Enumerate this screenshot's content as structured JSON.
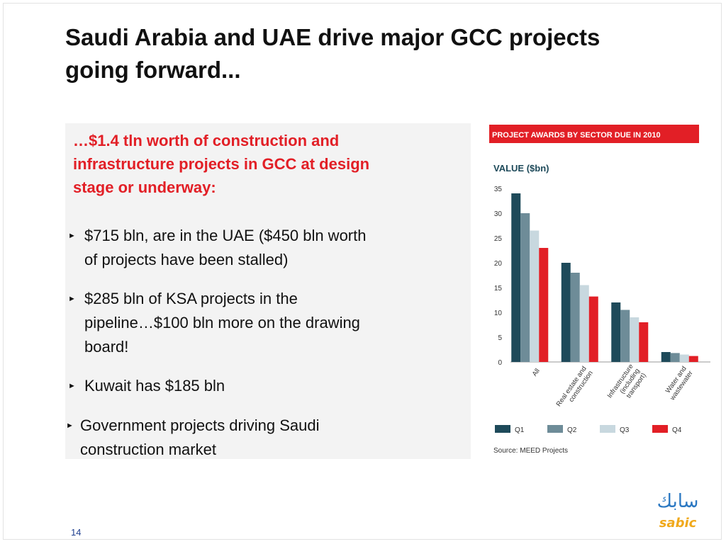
{
  "slide": {
    "title_lines": [
      "Saudi Arabia and UAE drive major GCC projects",
      "going forward..."
    ],
    "page_number": "14"
  },
  "panel": {
    "heading_lines": [
      "…$1.4 tln worth of construction and",
      "infrastructure projects in GCC at design",
      "stage or underway:"
    ],
    "bullets": [
      {
        "lines": [
          "$715 bln, are in the UAE ($450 bln worth",
          "of projects have been stalled)"
        ]
      },
      {
        "lines": [
          "$285 bln of KSA projects in the",
          "pipeline…$100 bln more on the drawing",
          "board!"
        ]
      },
      {
        "lines": [
          "Kuwait  has $185 bln"
        ]
      },
      {
        "lines": [
          "Government projects driving Saudi",
          "construction market"
        ]
      }
    ],
    "bullet_marker": "►"
  },
  "logo": {
    "arabic": "سابك",
    "latin": "sabic"
  },
  "chart_data": {
    "type": "bar",
    "title": "PROJECT AWARDS BY SECTOR DUE IN 2010",
    "ylabel": "VALUE ($bn)",
    "ylim": [
      0,
      35
    ],
    "yticks": [
      0,
      5,
      10,
      15,
      20,
      25,
      30,
      35
    ],
    "categories": [
      [
        "All"
      ],
      [
        "Real estate and",
        "construction"
      ],
      [
        "Infrastructure",
        "(including",
        "transport)"
      ],
      [
        "Water and",
        "wastewater"
      ]
    ],
    "series": [
      {
        "name": "Q1",
        "color": "#1e4a5a",
        "values": [
          34,
          20,
          12,
          2
        ]
      },
      {
        "name": "Q2",
        "color": "#6e8c98",
        "values": [
          30,
          18,
          10.5,
          1.8
        ]
      },
      {
        "name": "Q3",
        "color": "#c8d8df",
        "values": [
          26.5,
          15.5,
          9,
          1.5
        ]
      },
      {
        "name": "Q4",
        "color": "#e21f26",
        "values": [
          23,
          13.2,
          8,
          1.2
        ]
      }
    ],
    "source": "Source: MEED Projects",
    "title_bg": "#e21f26",
    "grid": false,
    "legend_position": "bottom"
  }
}
